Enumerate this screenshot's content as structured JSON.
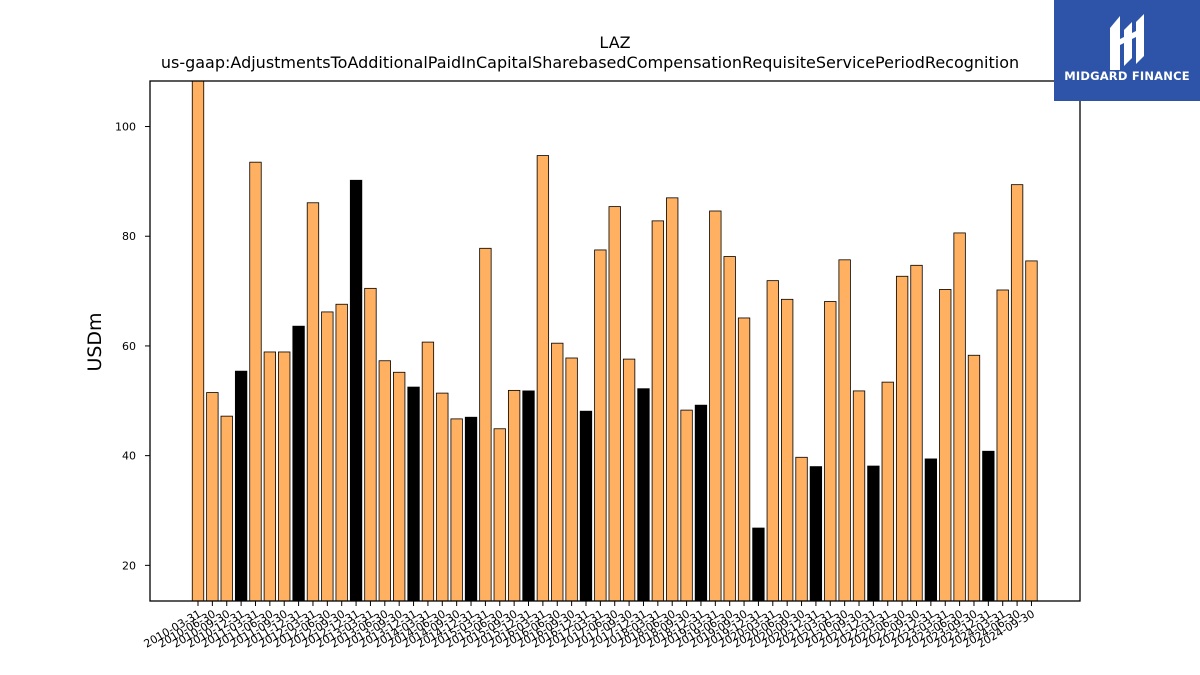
{
  "brand": {
    "name": "MIDGARD FINANCE",
    "box_color": "#2d54a8"
  },
  "chart_data": {
    "type": "bar",
    "title": "LAZ",
    "subtitle": "us-gaap:AdjustmentsToAdditionalPaidInCapitalSharebasedCompensationRequisiteServicePeriodRecognition",
    "ylabel": "USDm",
    "xlabel": "",
    "ylim": [
      13.5,
      108.3
    ],
    "yticks": [
      20,
      40,
      60,
      80,
      100
    ],
    "grid": false,
    "colors": {
      "default": "#ffb060",
      "q4_highlight": "#000000",
      "edge": "#000000"
    },
    "categories": [
      "2010-03-31",
      "2010-06-30",
      "2010-09-30",
      "2010-12-31",
      "2011-03-31",
      "2011-06-30",
      "2011-09-30",
      "2011-12-31",
      "2012-03-31",
      "2012-06-30",
      "2012-09-30",
      "2012-12-31",
      "2013-03-31",
      "2013-06-30",
      "2013-09-30",
      "2013-12-31",
      "2014-03-31",
      "2014-06-30",
      "2014-09-30",
      "2014-12-31",
      "2015-03-31",
      "2015-06-30",
      "2015-09-30",
      "2015-12-31",
      "2016-03-31",
      "2016-06-30",
      "2016-09-30",
      "2016-12-31",
      "2017-03-31",
      "2017-06-30",
      "2017-09-30",
      "2017-12-31",
      "2018-03-31",
      "2018-06-30",
      "2018-09-30",
      "2018-12-31",
      "2019-03-31",
      "2019-06-30",
      "2019-09-30",
      "2019-12-31",
      "2020-03-31",
      "2020-06-30",
      "2020-09-30",
      "2020-12-31",
      "2021-03-31",
      "2021-06-30",
      "2021-09-30",
      "2021-12-31",
      "2022-03-31",
      "2022-06-30",
      "2022-09-30",
      "2022-12-31",
      "2023-03-31",
      "2023-06-30",
      "2023-09-30",
      "2023-12-31",
      "2024-03-31",
      "2024-06-30",
      "2024-09-30"
    ],
    "values": [
      108.5,
      51.5,
      47.2,
      55.4,
      93.5,
      58.9,
      58.9,
      63.6,
      86.1,
      66.2,
      67.6,
      90.2,
      70.5,
      57.3,
      55.2,
      52.5,
      60.7,
      51.4,
      46.7,
      47.0,
      77.8,
      44.9,
      51.9,
      51.8,
      94.7,
      60.5,
      57.8,
      48.1,
      77.5,
      85.4,
      57.6,
      52.2,
      82.8,
      87.0,
      48.3,
      49.2,
      84.6,
      76.3,
      65.1,
      26.8,
      71.9,
      68.5,
      39.7,
      38.0,
      68.1,
      75.7,
      51.8,
      38.1,
      53.4,
      72.7,
      74.7,
      39.4,
      70.3,
      80.6,
      58.3,
      40.8,
      70.2,
      89.4,
      75.5
    ],
    "highlight": [
      false,
      false,
      false,
      true,
      false,
      false,
      false,
      true,
      false,
      false,
      false,
      true,
      false,
      false,
      false,
      true,
      false,
      false,
      false,
      true,
      false,
      false,
      false,
      true,
      false,
      false,
      false,
      true,
      false,
      false,
      false,
      true,
      false,
      false,
      false,
      true,
      false,
      false,
      false,
      true,
      false,
      false,
      false,
      true,
      false,
      false,
      false,
      true,
      false,
      false,
      false,
      true,
      false,
      false,
      false,
      true,
      false,
      false,
      false
    ]
  }
}
